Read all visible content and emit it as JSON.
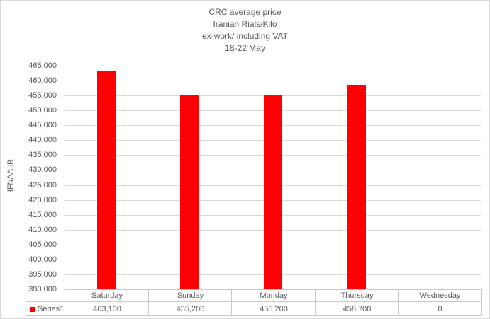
{
  "chart_data": {
    "type": "bar",
    "title": "CRC average price",
    "title_lines": [
      "CRC average price",
      "Iranian Rials/Kilo",
      "ex-work/ including VAT",
      "18-22 May"
    ],
    "categories": [
      "Saturday",
      "Sunday",
      "Monday",
      "Thursday",
      "Wednesday"
    ],
    "series": [
      {
        "name": "Series1",
        "values": [
          463100,
          455200,
          455200,
          458700,
          0
        ],
        "value_labels": [
          "463,100",
          "455,200",
          "455,200",
          "458,700",
          "0"
        ],
        "color": "#ff0000"
      }
    ],
    "xlabel": "",
    "ylabel": "IFNAA.IR",
    "ylim": [
      390000,
      465000
    ],
    "ytick_step": 5000,
    "ytick_labels": [
      "390,000",
      "395,000",
      "400,000",
      "405,000",
      "410,000",
      "415,000",
      "420,000",
      "425,000",
      "430,000",
      "435,000",
      "440,000",
      "445,000",
      "450,000",
      "455,000",
      "460,000",
      "465,000"
    ],
    "grid": true,
    "legend_position": "data-table-left",
    "data_table_shown": true,
    "colors": {
      "bar": "#ff0000",
      "gridline": "#d9d9d9",
      "table_border": "#c9c9c9",
      "text": "#595959",
      "chart_border": "#d9d9d9",
      "background": "#ffffff"
    }
  }
}
